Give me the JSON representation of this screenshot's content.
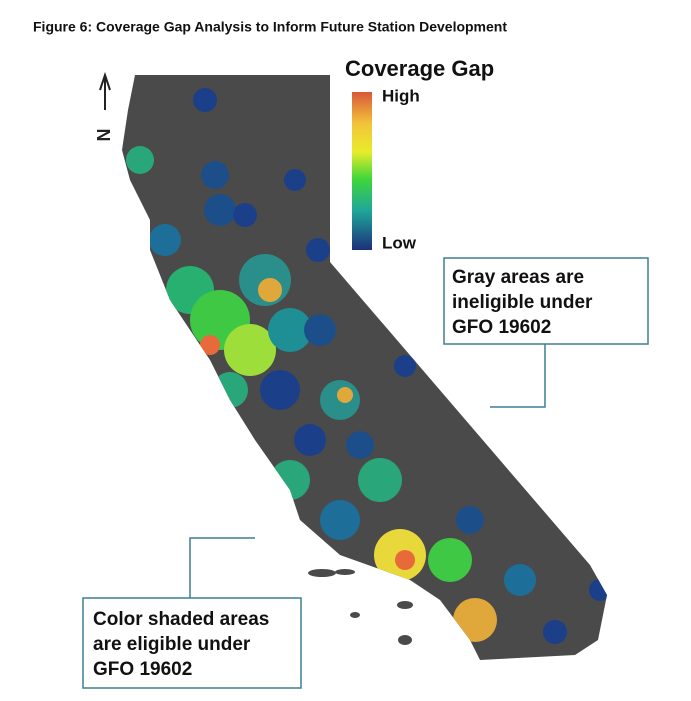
{
  "header": {
    "title": "Figure 6: Coverage Gap Analysis to Inform Future Station Development"
  },
  "legend": {
    "title": "Coverage Gap",
    "high": "High",
    "low": "Low"
  },
  "compass": {
    "label": "N"
  },
  "callouts": [
    {
      "lines": [
        "Gray areas are",
        "ineligible under",
        "GFO 19602"
      ]
    },
    {
      "lines": [
        "Color shaded areas",
        "are eligible under",
        "GFO 19602"
      ]
    }
  ]
}
